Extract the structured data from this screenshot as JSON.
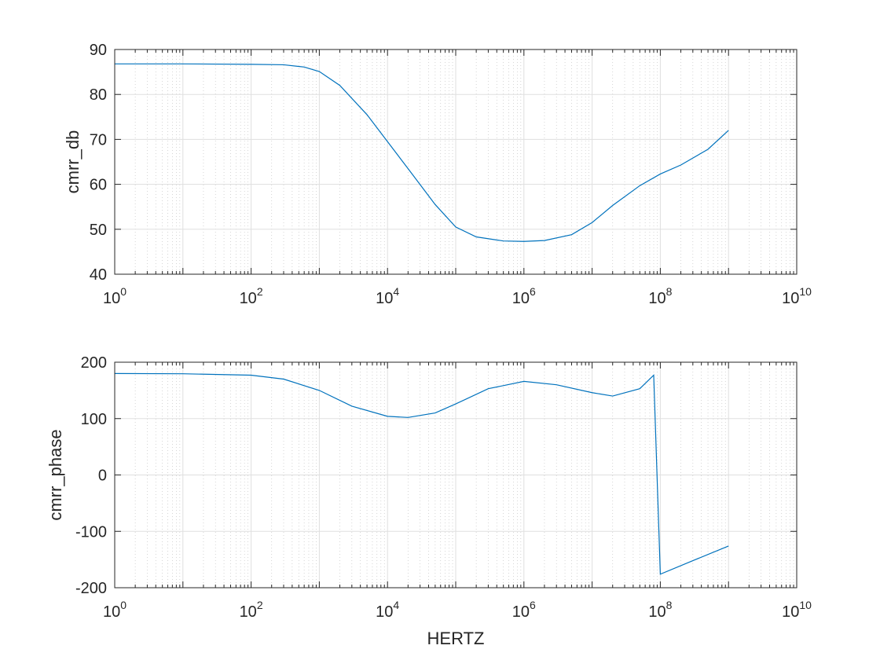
{
  "chart_data": [
    {
      "type": "line",
      "xscale": "log",
      "xlim": [
        1,
        10000000000
      ],
      "ylim": [
        40,
        90
      ],
      "xlabel": "",
      "ylabel": "cmrr_db",
      "grid": true,
      "xticks": [
        {
          "base": "10",
          "exp": "0"
        },
        {
          "base": "10",
          "exp": "2"
        },
        {
          "base": "10",
          "exp": "4"
        },
        {
          "base": "10",
          "exp": "6"
        },
        {
          "base": "10",
          "exp": "8"
        },
        {
          "base": "10",
          "exp": "10"
        }
      ],
      "yticks": [
        "40",
        "50",
        "60",
        "70",
        "80",
        "90"
      ],
      "series": [
        {
          "color": "#0072BD",
          "x": [
            1,
            10,
            100,
            300,
            600,
            1000,
            2000,
            5000,
            10000,
            20000,
            50000,
            100000,
            200000,
            500000,
            1000000,
            2000000,
            5000000,
            10000000,
            20000000,
            50000000,
            100000000,
            200000000,
            500000000,
            1000000000
          ],
          "y": [
            86.8,
            86.8,
            86.7,
            86.6,
            86.1,
            85.1,
            82.0,
            75.5,
            69.5,
            63.5,
            55.5,
            50.5,
            48.3,
            47.4,
            47.3,
            47.5,
            48.8,
            51.5,
            55.3,
            59.7,
            62.3,
            64.3,
            67.8,
            72.0
          ]
        }
      ]
    },
    {
      "type": "line",
      "xscale": "log",
      "xlim": [
        1,
        10000000000
      ],
      "ylim": [
        -200,
        200
      ],
      "xlabel": "HERTZ",
      "ylabel": "cmrr_phase",
      "grid": true,
      "xticks": [
        {
          "base": "10",
          "exp": "0"
        },
        {
          "base": "10",
          "exp": "2"
        },
        {
          "base": "10",
          "exp": "4"
        },
        {
          "base": "10",
          "exp": "6"
        },
        {
          "base": "10",
          "exp": "8"
        },
        {
          "base": "10",
          "exp": "10"
        }
      ],
      "yticks": [
        "-200",
        "-100",
        "0",
        "100",
        "200"
      ],
      "series": [
        {
          "color": "#0072BD",
          "x": [
            1,
            10,
            100,
            300,
            1000,
            3000,
            10000,
            20000,
            50000,
            100000,
            300000,
            1000000,
            3000000,
            10000000,
            20000000,
            50000000,
            80000000,
            100000000,
            300000000,
            1000000000
          ],
          "y": [
            180,
            179.5,
            177,
            170,
            150,
            122,
            104,
            102,
            110,
            126,
            153,
            166,
            160,
            146,
            140,
            153,
            177,
            -176,
            -152,
            -126
          ]
        }
      ]
    }
  ]
}
